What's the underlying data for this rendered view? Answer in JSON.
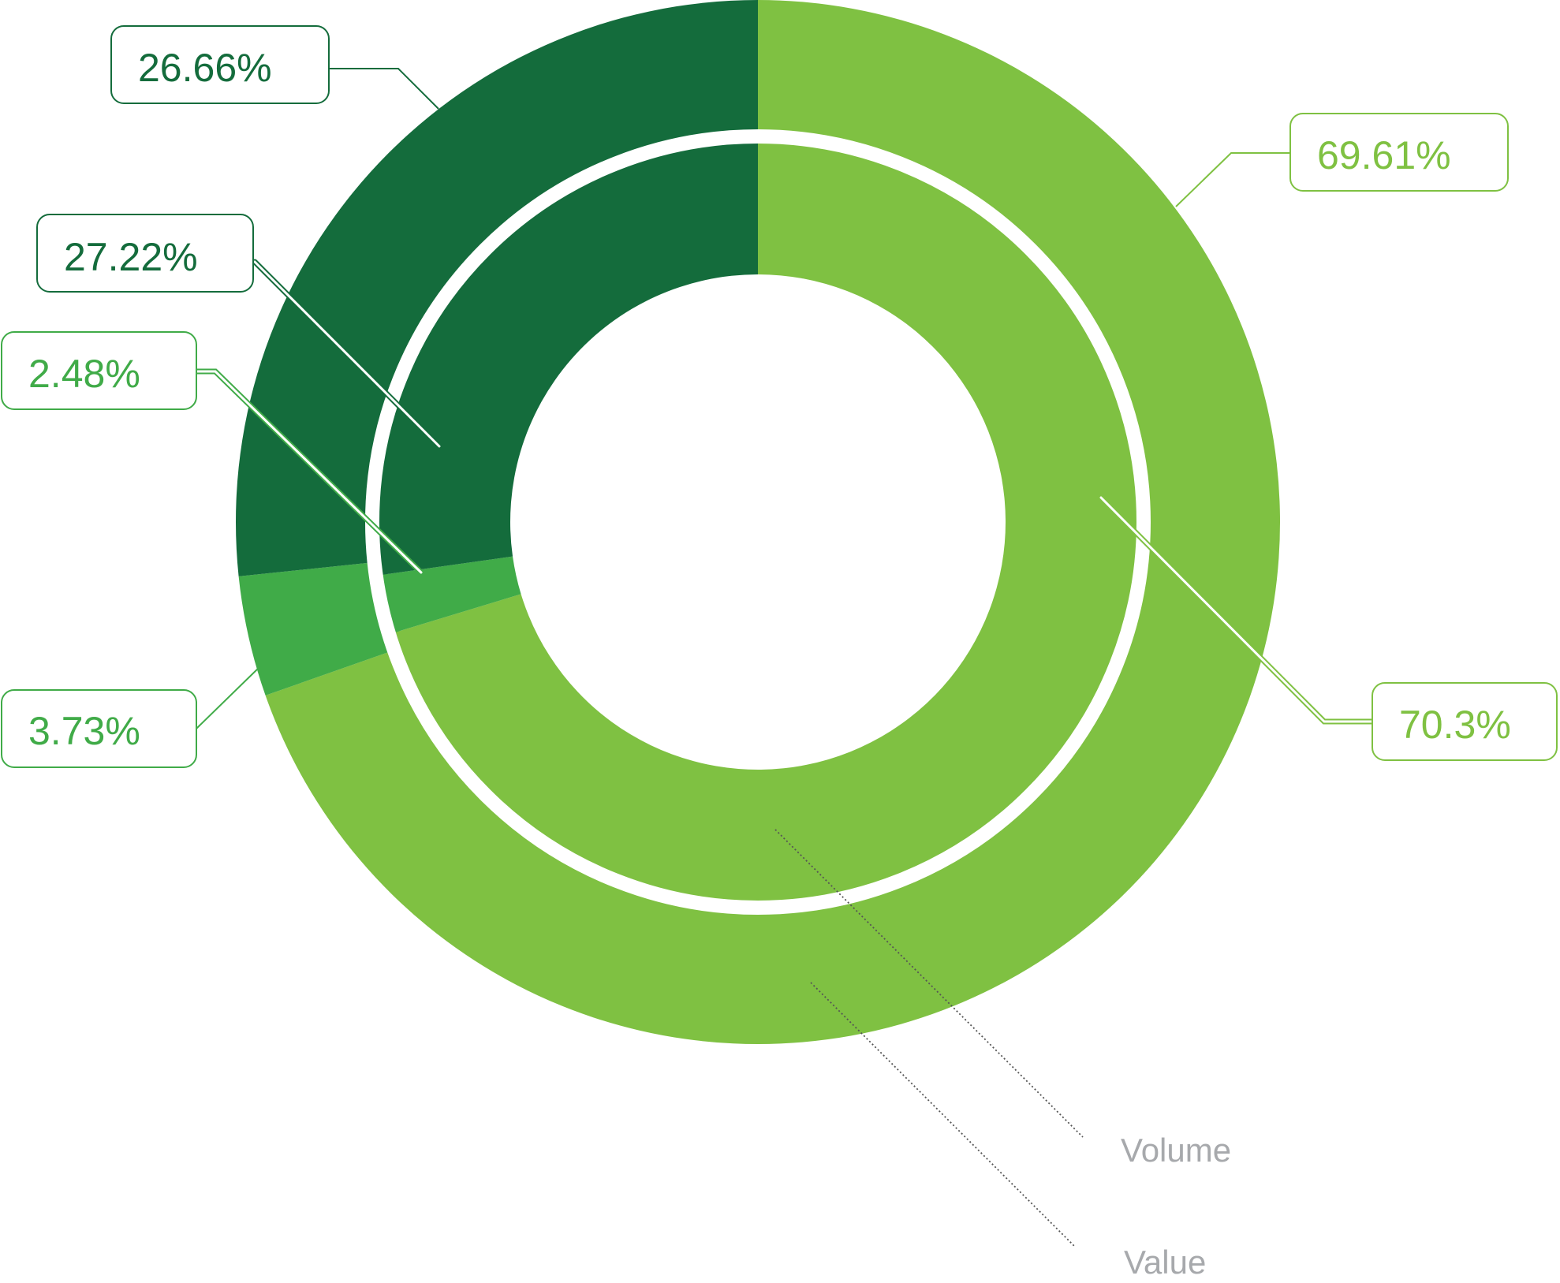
{
  "chart_data": {
    "type": "pie",
    "rings": [
      {
        "name": "Value",
        "values": [
          69.61,
          3.73,
          26.66
        ],
        "labels": [
          "69.61%",
          "3.73%",
          "26.66%"
        ],
        "colors": [
          "#7fc142",
          "#40ab48",
          "#146c3c"
        ]
      },
      {
        "name": "Volume",
        "values": [
          70.3,
          2.48,
          27.22
        ],
        "labels": [
          "70.3%",
          "2.48%",
          "27.22%"
        ],
        "colors": [
          "#7fc142",
          "#40ab48",
          "#146c3c"
        ]
      }
    ],
    "label_colors": [
      "#7fc142",
      "#40ab48",
      "#146c3c"
    ]
  }
}
